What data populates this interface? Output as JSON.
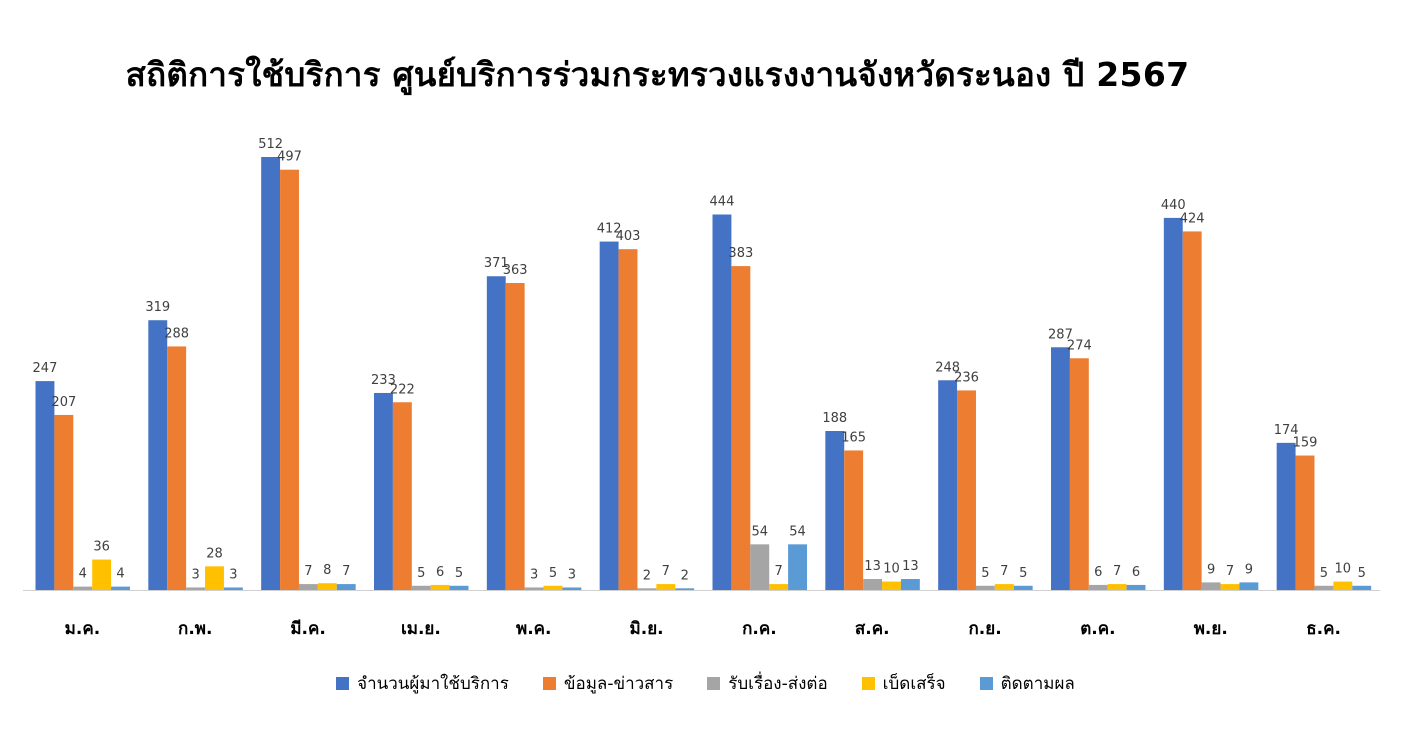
{
  "chart_data": {
    "type": "bar",
    "title": "สถิติการใช้บริการ ศูนย์บริการร่วมกระทรวงแรงงานจังหวัดระนอง ปี 2567",
    "categories": [
      "ม.ค.",
      "ก.พ.",
      "มี.ค.",
      "เม.ย.",
      "พ.ค.",
      "มิ.ย.",
      "ก.ค.",
      "ส.ค.",
      "ก.ย.",
      "ต.ค.",
      "พ.ย.",
      "ธ.ค."
    ],
    "series": [
      {
        "name": "จำนวนผู้มาใช้บริการ",
        "color": "#4472C4",
        "values": [
          247,
          319,
          512,
          233,
          371,
          412,
          444,
          188,
          248,
          287,
          440,
          174
        ]
      },
      {
        "name": "ข้อมูล-ข่าวสาร",
        "color": "#ED7D31",
        "values": [
          207,
          288,
          497,
          222,
          363,
          403,
          383,
          165,
          236,
          274,
          424,
          159
        ]
      },
      {
        "name": "รับเรื่อง-ส่งต่อ",
        "color": "#A5A5A5",
        "values": [
          4,
          3,
          7,
          5,
          3,
          2,
          54,
          13,
          5,
          6,
          9,
          5
        ]
      },
      {
        "name": "เบ็ดเสร็จ",
        "color": "#FFC000",
        "values": [
          36,
          28,
          8,
          6,
          5,
          7,
          7,
          10,
          7,
          7,
          7,
          10
        ]
      },
      {
        "name": "ติดตามผล",
        "color": "#5B9BD5",
        "values": [
          4,
          3,
          7,
          5,
          3,
          2,
          54,
          13,
          5,
          6,
          9,
          5
        ]
      }
    ],
    "ylim": [
      0,
      512
    ],
    "grid": false,
    "legend_position": "bottom"
  }
}
